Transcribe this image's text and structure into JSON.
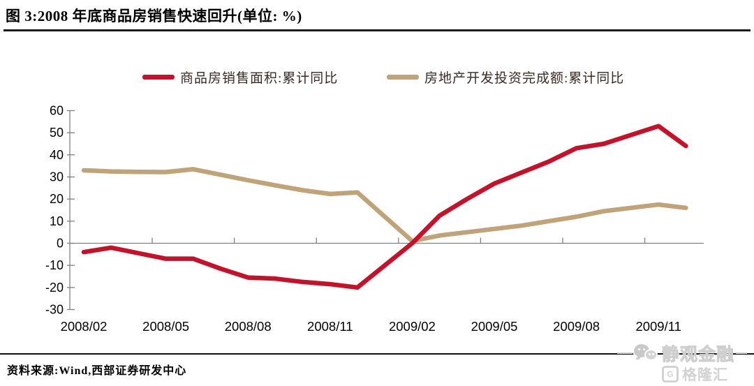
{
  "title": "图 3:2008 年底商品房销售快速回升(单位: %)",
  "source": "资料来源:Wind,西部证券研发中心",
  "watermark": {
    "brand_text": "静观金融",
    "logo_mark": "G",
    "logo_text": "格隆汇"
  },
  "colors": {
    "sales_line": "#C4122B",
    "investment_line": "#C1A37A",
    "axis": "#7f7f7f",
    "tick_label": "#000000"
  },
  "chart_data": {
    "type": "line",
    "title": "图 3:2008 年底商品房销售快速回升(单位: %)",
    "xlabel": "",
    "ylabel": "",
    "ylim": [
      -30,
      60
    ],
    "yticks": [
      60,
      50,
      40,
      30,
      20,
      10,
      0,
      -10,
      -20,
      -30
    ],
    "grid": false,
    "legend_position": "top",
    "x": [
      "2008/02",
      "2008/03",
      "2008/04",
      "2008/05",
      "2008/06",
      "2008/07",
      "2008/08",
      "2008/09",
      "2008/10",
      "2008/11",
      "2008/12",
      "2009/02",
      "2009/03",
      "2009/04",
      "2009/05",
      "2009/06",
      "2009/07",
      "2009/08",
      "2009/09",
      "2009/10",
      "2009/11",
      "2009/12"
    ],
    "xtick_labels": [
      "2008/02",
      "2008/05",
      "2008/08",
      "2008/11",
      "2009/02",
      "2009/05",
      "2009/08",
      "2009/11"
    ],
    "series": [
      {
        "name": "商品房销售面积:累计同比",
        "color": "#C4122B",
        "values": [
          -4,
          -2,
          -4.5,
          -7,
          -7,
          -11.5,
          -15.5,
          -16,
          -17.5,
          -18.5,
          -20,
          0,
          12.5,
          20,
          27,
          32,
          37,
          43,
          45,
          49,
          53,
          44
        ]
      },
      {
        "name": "房地产开发投资完成额:累计同比",
        "color": "#C1A37A",
        "values": [
          33,
          32.5,
          32.3,
          32.2,
          33.5,
          31,
          28.5,
          26.2,
          24,
          22.3,
          23,
          1,
          3.5,
          5,
          6.5,
          8,
          10,
          12,
          14.5,
          16,
          17.5,
          16
        ]
      }
    ]
  }
}
